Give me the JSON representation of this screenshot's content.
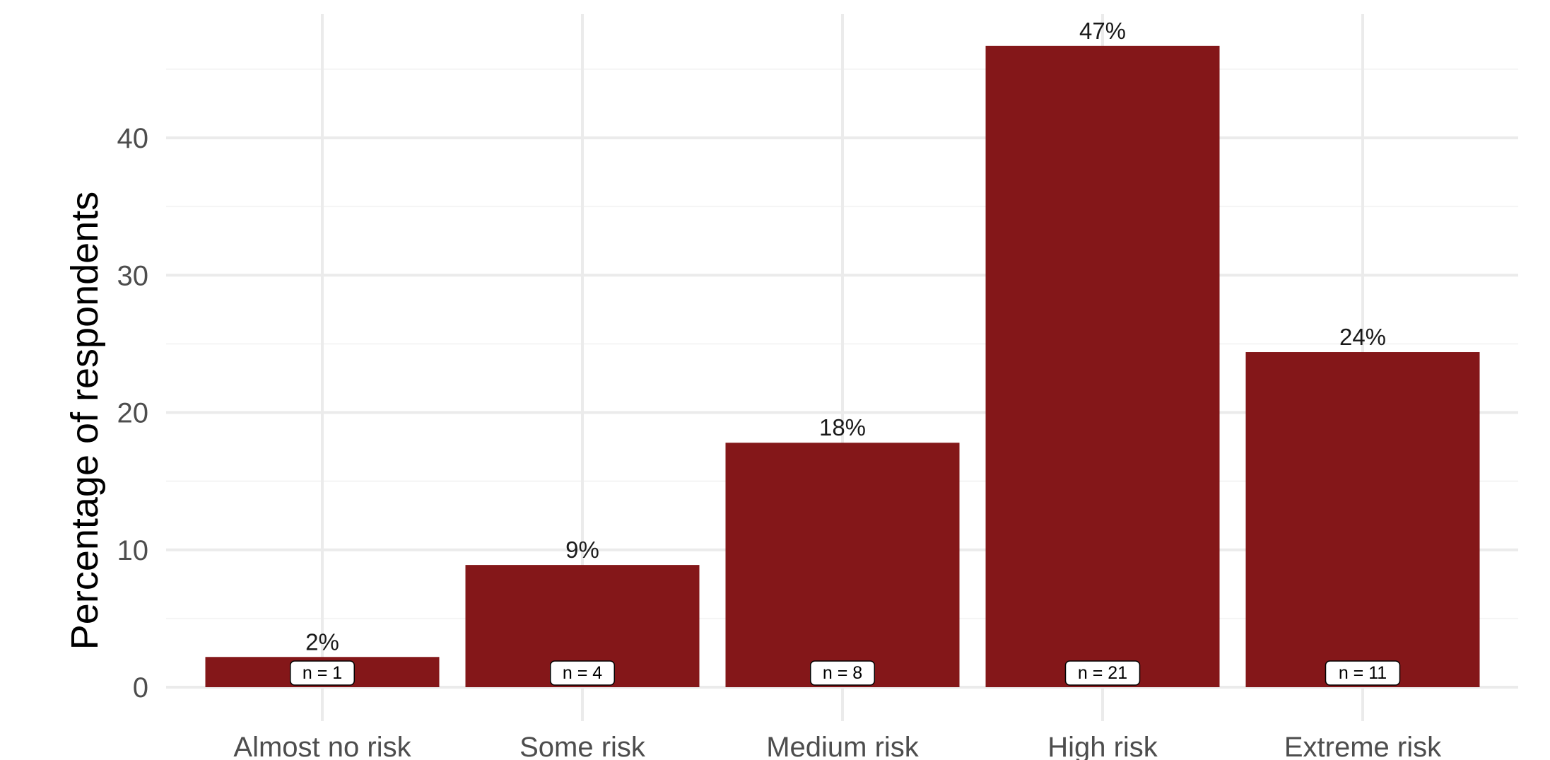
{
  "chart_data": {
    "type": "bar",
    "categories": [
      "Almost no risk",
      "Some risk",
      "Medium risk",
      "High risk",
      "Extreme risk"
    ],
    "values": [
      2.2,
      8.9,
      17.8,
      46.7,
      24.4
    ],
    "data_labels": [
      "2%",
      "9%",
      "18%",
      "47%",
      "24%"
    ],
    "n_labels": [
      "n = 1",
      "n = 4",
      "n = 8",
      "n = 21",
      "n = 11"
    ],
    "title": "",
    "xlabel": "",
    "ylabel": "Percentage of respondents",
    "ylim": [
      0,
      49
    ],
    "yticks": [
      0,
      10,
      20,
      30,
      40
    ],
    "ytick_labels": [
      "0",
      "10",
      "20",
      "30",
      "40"
    ],
    "grid": true,
    "legend": "none",
    "colors": {
      "bar": "#841719",
      "grid_major": "#ebebeb",
      "grid_minor": "#f4f4f4",
      "text": "#4d4d4d"
    }
  }
}
